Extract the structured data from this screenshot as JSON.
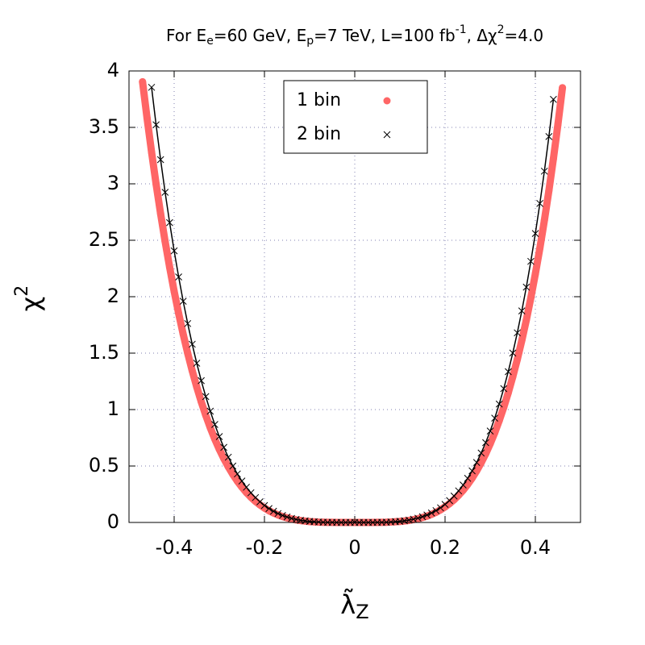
{
  "chart_data": {
    "type": "scatter",
    "title": [
      "For E",
      "e",
      "=60 GeV, E",
      "p",
      "=7 TeV, L=100 fb",
      "-1",
      ", Δχ",
      "2",
      "=4.0"
    ],
    "x_label": [
      "λ̃",
      "Z"
    ],
    "y_label": [
      "χ",
      "2"
    ],
    "xlim": [
      -0.5,
      0.5
    ],
    "xticks": [
      -0.4,
      -0.2,
      0,
      0.2,
      0.4
    ],
    "ylim": [
      0,
      4
    ],
    "yticks": [
      0,
      0.5,
      1,
      1.5,
      2,
      2.5,
      3,
      3.5,
      4
    ],
    "grid": true,
    "legend": "top-center",
    "series": [
      {
        "name": "1 bin",
        "color": "#ff6666",
        "marker": "circle",
        "x": [
          -0.47,
          -0.46,
          -0.45,
          -0.44,
          -0.43,
          -0.42,
          -0.41,
          -0.4,
          -0.39,
          -0.38,
          -0.37,
          -0.36,
          -0.35,
          -0.34,
          -0.33,
          -0.32,
          -0.31,
          -0.3,
          -0.29,
          -0.28,
          -0.27,
          -0.26,
          -0.25,
          -0.24,
          -0.23,
          -0.22,
          -0.21,
          -0.2,
          -0.19,
          -0.18,
          -0.17,
          -0.16,
          -0.15,
          -0.14,
          -0.13,
          -0.12,
          -0.11,
          -0.1,
          -0.09,
          -0.08,
          -0.07,
          -0.06,
          -0.05,
          -0.04,
          -0.03,
          -0.02,
          -0.01,
          0,
          0.01,
          0.02,
          0.03,
          0.04,
          0.05,
          0.06,
          0.07,
          0.08,
          0.09,
          0.1,
          0.11,
          0.12,
          0.13,
          0.14,
          0.15,
          0.16,
          0.17,
          0.18,
          0.19,
          0.2,
          0.21,
          0.22,
          0.23,
          0.24,
          0.25,
          0.26,
          0.27,
          0.28,
          0.29,
          0.3,
          0.31,
          0.32,
          0.33,
          0.34,
          0.35,
          0.36,
          0.37,
          0.38,
          0.39,
          0.4,
          0.41,
          0.42,
          0.43,
          0.44,
          0.45,
          0.46
        ],
        "values": [
          3.904,
          3.582,
          3.281,
          2.998,
          2.735,
          2.489,
          2.261,
          2.048,
          1.851,
          1.668,
          1.499,
          1.344,
          1.201,
          1.069,
          0.949,
          0.839,
          0.739,
          0.648,
          0.566,
          0.492,
          0.425,
          0.366,
          0.313,
          0.265,
          0.224,
          0.187,
          0.156,
          0.128,
          0.104,
          0.084,
          0.067,
          0.052,
          0.041,
          0.031,
          0.023,
          0.017,
          0.012,
          0.008,
          0.005,
          0.003,
          0.002,
          0.001,
          0.001,
          0,
          0,
          0,
          0,
          0,
          0,
          0,
          0,
          0,
          0.001,
          0.001,
          0.002,
          0.004,
          0.006,
          0.009,
          0.013,
          0.018,
          0.025,
          0.033,
          0.044,
          0.056,
          0.072,
          0.09,
          0.112,
          0.138,
          0.167,
          0.201,
          0.241,
          0.285,
          0.336,
          0.393,
          0.457,
          0.529,
          0.608,
          0.697,
          0.794,
          0.902,
          1.02,
          1.149,
          1.291,
          1.444,
          1.612,
          1.793,
          1.99,
          2.202,
          2.43,
          2.676,
          2.94,
          3.223,
          3.527,
          3.851
        ]
      },
      {
        "name": "2 bin",
        "color": "#000000",
        "marker": "cross",
        "x": [
          -0.45,
          -0.44,
          -0.43,
          -0.42,
          -0.41,
          -0.4,
          -0.39,
          -0.38,
          -0.37,
          -0.36,
          -0.35,
          -0.34,
          -0.33,
          -0.32,
          -0.31,
          -0.3,
          -0.29,
          -0.28,
          -0.27,
          -0.26,
          -0.25,
          -0.24,
          -0.23,
          -0.22,
          -0.21,
          -0.2,
          -0.19,
          -0.18,
          -0.17,
          -0.16,
          -0.15,
          -0.14,
          -0.13,
          -0.12,
          -0.11,
          -0.1,
          -0.09,
          -0.08,
          -0.07,
          -0.06,
          -0.05,
          -0.04,
          -0.03,
          -0.02,
          -0.01,
          0,
          0.01,
          0.02,
          0.03,
          0.04,
          0.05,
          0.06,
          0.07,
          0.08,
          0.09,
          0.1,
          0.11,
          0.12,
          0.13,
          0.14,
          0.15,
          0.16,
          0.17,
          0.18,
          0.19,
          0.2,
          0.21,
          0.22,
          0.23,
          0.24,
          0.25,
          0.26,
          0.27,
          0.28,
          0.29,
          0.3,
          0.31,
          0.32,
          0.33,
          0.34,
          0.35,
          0.36,
          0.37,
          0.38,
          0.39,
          0.4,
          0.41,
          0.42,
          0.43,
          0.44
        ],
        "values": [
          3.855,
          3.523,
          3.214,
          2.925,
          2.656,
          2.406,
          2.175,
          1.96,
          1.762,
          1.579,
          1.411,
          1.256,
          1.115,
          0.986,
          0.868,
          0.761,
          0.665,
          0.578,
          0.5,
          0.43,
          0.367,
          0.312,
          0.263,
          0.22,
          0.183,
          0.15,
          0.123,
          0.099,
          0.079,
          0.062,
          0.048,
          0.036,
          0.027,
          0.019,
          0.014,
          0.009,
          0.006,
          0.004,
          0.002,
          0.001,
          0.001,
          0,
          0,
          0,
          0,
          0,
          0,
          0,
          0,
          0,
          0.001,
          0.001,
          0.002,
          0.004,
          0.007,
          0.01,
          0.015,
          0.021,
          0.029,
          0.038,
          0.051,
          0.066,
          0.084,
          0.105,
          0.13,
          0.16,
          0.194,
          0.234,
          0.28,
          0.332,
          0.391,
          0.457,
          0.531,
          0.615,
          0.707,
          0.81,
          0.924,
          1.049,
          1.186,
          1.336,
          1.501,
          1.68,
          1.874,
          2.085,
          2.313,
          2.56,
          2.826,
          3.112,
          3.419,
          3.748
        ]
      }
    ]
  }
}
